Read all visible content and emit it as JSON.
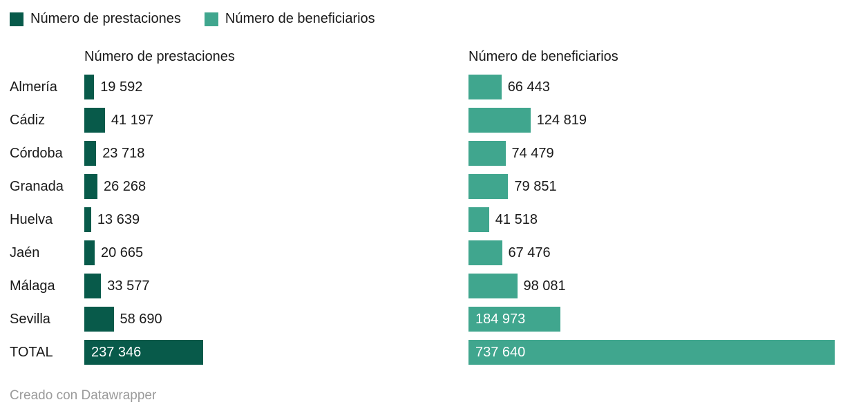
{
  "chart_data": {
    "type": "bar",
    "orientation": "horizontal",
    "grid": false,
    "legend_position": "top",
    "categories": [
      "Almería",
      "Cádiz",
      "Córdoba",
      "Granada",
      "Huelva",
      "Jaén",
      "Málaga",
      "Sevilla",
      "TOTAL"
    ],
    "series": [
      {
        "name": "Número de prestaciones",
        "color": "#085a4a",
        "values": [
          19592,
          41197,
          23718,
          26268,
          13639,
          20665,
          33577,
          58690,
          237346
        ],
        "value_labels": [
          "19 592",
          "41 197",
          "23 718",
          "26 268",
          "13 639",
          "20 665",
          "33 577",
          "58 690",
          "237 346"
        ]
      },
      {
        "name": "Número de beneficiarios",
        "color": "#40a68e",
        "values": [
          66443,
          124819,
          74479,
          79851,
          41518,
          67476,
          98081,
          184973,
          737640
        ],
        "value_labels": [
          "66 443",
          "124 819",
          "74 479",
          "79 851",
          "41 518",
          "67 476",
          "98 081",
          "184 973",
          "737 640"
        ]
      }
    ]
  },
  "footer": {
    "text": "Creado con Datawrapper"
  }
}
